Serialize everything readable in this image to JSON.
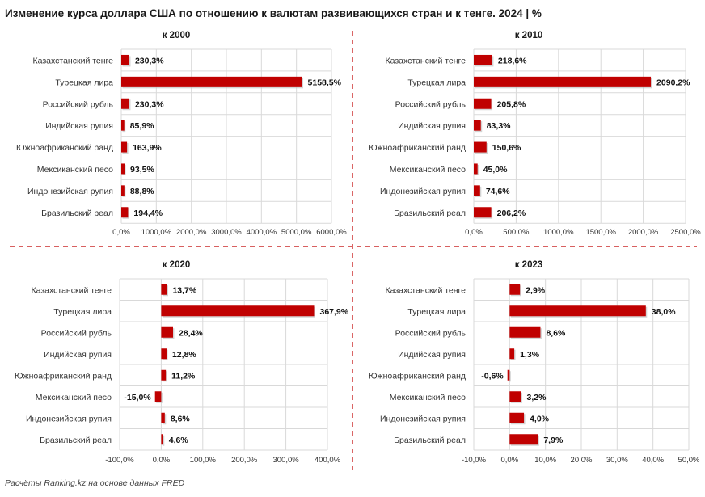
{
  "title": "Изменение курса доллара США по отношению к валютам развивающихся стран и к тенге. 2024 | %",
  "source": "Расчёты Ranking.kz на основе данных FRED",
  "colors": {
    "bar": "#c00000",
    "grid": "#d9d9d9",
    "divider": "#c00000"
  },
  "chart_data": [
    {
      "type": "bar",
      "orientation": "horizontal",
      "title": "к 2000",
      "categories": [
        "Казахстанский тенге",
        "Турецкая лира",
        "Российский рубль",
        "Индийская рупия",
        "Южноафриканский ранд",
        "Мексиканский песо",
        "Индонезийская рупия",
        "Бразильский реал"
      ],
      "values": [
        230.3,
        5158.5,
        230.3,
        85.9,
        163.9,
        93.5,
        88.8,
        194.4
      ],
      "value_labels": [
        "230,3%",
        "5158,5%",
        "230,3%",
        "85,9%",
        "163,9%",
        "93,5%",
        "88,8%",
        "194,4%"
      ],
      "xlim": [
        0,
        6000
      ],
      "ticks": [
        "0,0%",
        "1000,0%",
        "2000,0%",
        "3000,0%",
        "4000,0%",
        "5000,0%",
        "6000,0%"
      ],
      "grid": true
    },
    {
      "type": "bar",
      "orientation": "horizontal",
      "title": "к 2010",
      "categories": [
        "Казахстанский тенге",
        "Турецкая лира",
        "Российский рубль",
        "Индийская рупия",
        "Южноафриканский ранд",
        "Мексиканский песо",
        "Индонезийская рупия",
        "Бразильский реал"
      ],
      "values": [
        218.6,
        2090.2,
        205.8,
        83.3,
        150.6,
        45.0,
        74.6,
        206.2
      ],
      "value_labels": [
        "218,6%",
        "2090,2%",
        "205,8%",
        "83,3%",
        "150,6%",
        "45,0%",
        "74,6%",
        "206,2%"
      ],
      "xlim": [
        0,
        2500
      ],
      "ticks": [
        "0,0%",
        "500,0%",
        "1000,0%",
        "1500,0%",
        "2000,0%",
        "2500,0%"
      ],
      "grid": true
    },
    {
      "type": "bar",
      "orientation": "horizontal",
      "title": "к 2020",
      "categories": [
        "Казахстанский тенге",
        "Турецкая лира",
        "Российский рубль",
        "Индийская рупия",
        "Южноафриканский ранд",
        "Мексиканский песо",
        "Индонезийская рупия",
        "Бразильский реал"
      ],
      "values": [
        13.7,
        367.9,
        28.4,
        12.8,
        11.2,
        -15.0,
        8.6,
        4.6
      ],
      "value_labels": [
        "13,7%",
        "367,9%",
        "28,4%",
        "12,8%",
        "11,2%",
        "-15,0%",
        "8,6%",
        "4,6%"
      ],
      "xlim": [
        -100,
        400
      ],
      "ticks": [
        "-100,0%",
        "0,0%",
        "100,0%",
        "200,0%",
        "300,0%",
        "400,0%"
      ],
      "grid": true
    },
    {
      "type": "bar",
      "orientation": "horizontal",
      "title": "к 2023",
      "categories": [
        "Казахстанский тенге",
        "Турецкая лира",
        "Российский рубль",
        "Индийская рупия",
        "Южноафриканский ранд",
        "Мексиканский песо",
        "Индонезийская рупия",
        "Бразильский реал"
      ],
      "values": [
        2.9,
        38.0,
        8.6,
        1.3,
        -0.6,
        3.2,
        4.0,
        7.9
      ],
      "value_labels": [
        "2,9%",
        "38,0%",
        "8,6%",
        "1,3%",
        "-0,6%",
        "3,2%",
        "4,0%",
        "7,9%"
      ],
      "xlim": [
        -10,
        50
      ],
      "ticks": [
        "-10,0%",
        "0,0%",
        "10,0%",
        "20,0%",
        "30,0%",
        "40,0%",
        "50,0%"
      ],
      "grid": true
    }
  ]
}
